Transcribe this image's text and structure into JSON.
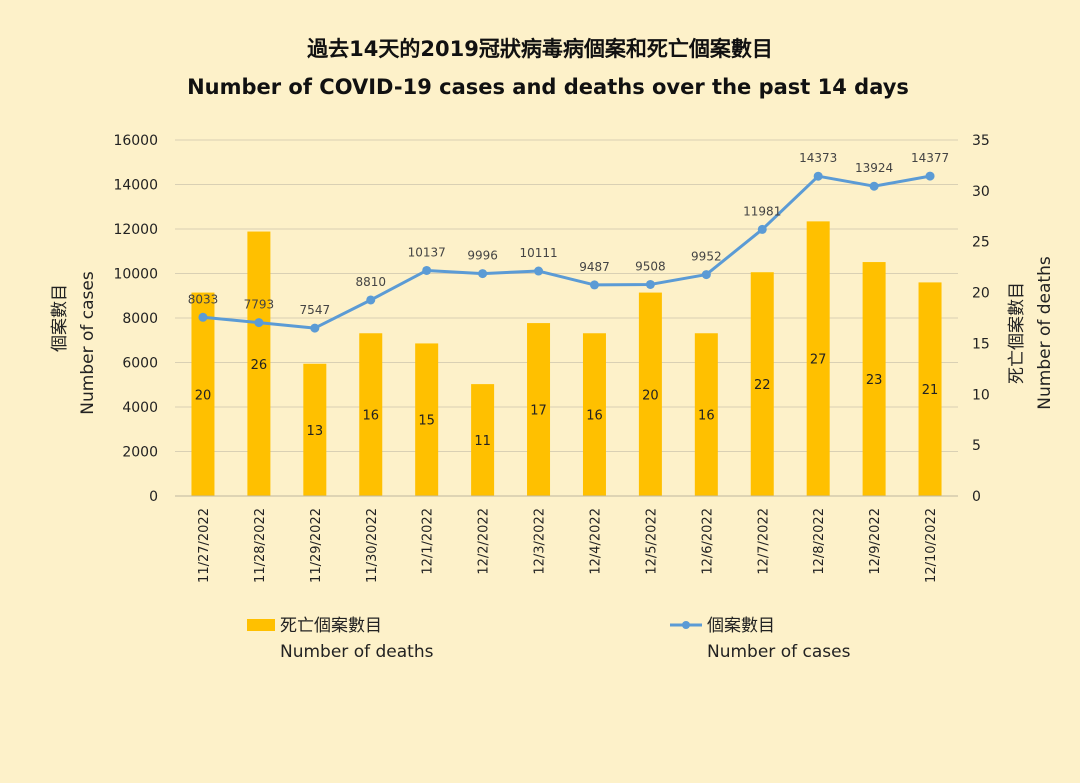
{
  "chart_data": {
    "type": "bar+line",
    "title_zh": "過去14天的2019冠狀病毒病個案和死亡個案數目",
    "title_en": "Number of COVID-19 cases and deaths over the past 14 days",
    "categories": [
      "11/27/2022",
      "11/28/2022",
      "11/29/2022",
      "11/30/2022",
      "12/1/2022",
      "12/2/2022",
      "12/3/2022",
      "12/4/2022",
      "12/5/2022",
      "12/6/2022",
      "12/7/2022",
      "12/8/2022",
      "12/9/2022",
      "12/10/2022"
    ],
    "series": [
      {
        "name": "死亡個案數目",
        "name_en": "Number of deaths",
        "type": "bar",
        "axis": "right",
        "color": "#ffc000",
        "values": [
          20,
          26,
          13,
          16,
          15,
          11,
          17,
          16,
          20,
          16,
          22,
          27,
          23,
          21
        ]
      },
      {
        "name": "個案數目",
        "name_en": "Number of cases",
        "type": "line",
        "axis": "left",
        "color": "#5b9bd5",
        "values": [
          8033,
          7793,
          7547,
          8810,
          10137,
          9996,
          10111,
          9487,
          9508,
          9952,
          11981,
          14373,
          13924,
          14377
        ]
      }
    ],
    "y_left": {
      "label_zh": "個案數目",
      "label_en": "Number of cases",
      "ylim": [
        0,
        16000
      ],
      "ticks": [
        0,
        2000,
        4000,
        6000,
        8000,
        10000,
        12000,
        14000,
        16000
      ]
    },
    "y_right": {
      "label_zh": "死亡個案數目",
      "label_en": "Number of deaths",
      "ylim": [
        0,
        35
      ],
      "ticks": [
        0,
        5,
        10,
        15,
        20,
        25,
        30,
        35
      ]
    },
    "grid": true,
    "legend_position": "bottom"
  }
}
